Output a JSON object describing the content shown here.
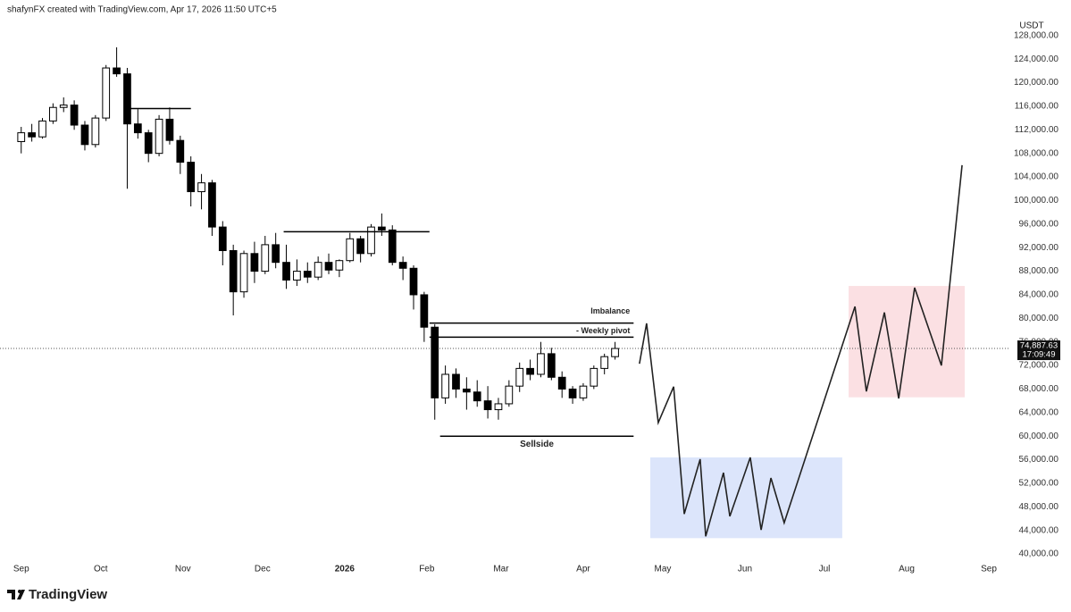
{
  "header": {
    "credit": "shafynFX created with TradingView.com, Apr 17, 2026 11:50 UTC+5"
  },
  "chart_data": {
    "type": "candlestick",
    "currency": "USDT",
    "up_color": "#ffffff",
    "down_color": "#000000",
    "xlim": [
      -8,
      366
    ],
    "ylim": [
      38500,
      131000
    ],
    "x": [
      0,
      4,
      8,
      12,
      16,
      20,
      24,
      28,
      32,
      36,
      40,
      44,
      48,
      52,
      56,
      60,
      64,
      68,
      72,
      76,
      80,
      84,
      88,
      92,
      96,
      100,
      104,
      108,
      112,
      116,
      120,
      124,
      128,
      132,
      136,
      140,
      144,
      148,
      152,
      156,
      160,
      164,
      168,
      172,
      176,
      180,
      184,
      188,
      192,
      196,
      200,
      204,
      208,
      212,
      216,
      220,
      224
    ],
    "ohlc": [
      [
        110000,
        112500,
        108000,
        111500
      ],
      [
        111500,
        113000,
        110000,
        110800
      ],
      [
        110800,
        114000,
        110500,
        113500
      ],
      [
        113500,
        116500,
        113000,
        115800
      ],
      [
        115800,
        117500,
        115000,
        116200
      ],
      [
        116200,
        117000,
        112000,
        112800
      ],
      [
        112800,
        113500,
        108500,
        109500
      ],
      [
        109500,
        114500,
        109000,
        114000
      ],
      [
        114000,
        123000,
        113500,
        122500
      ],
      [
        122500,
        126000,
        121000,
        121500
      ],
      [
        121500,
        122500,
        102000,
        113000
      ],
      [
        113000,
        115500,
        110500,
        111500
      ],
      [
        111500,
        112000,
        106500,
        108000
      ],
      [
        108000,
        114500,
        107500,
        113800
      ],
      [
        113800,
        115800,
        109500,
        110200
      ],
      [
        110200,
        111000,
        104500,
        106500
      ],
      [
        106500,
        107500,
        99000,
        101500
      ],
      [
        101500,
        104500,
        98500,
        103000
      ],
      [
        103000,
        103500,
        94000,
        95500
      ],
      [
        95500,
        96500,
        89000,
        91500
      ],
      [
        91500,
        92500,
        80500,
        84500
      ],
      [
        84500,
        91500,
        83500,
        91000
      ],
      [
        91000,
        93000,
        86000,
        88000
      ],
      [
        88000,
        94000,
        87500,
        92500
      ],
      [
        92500,
        94500,
        88500,
        89500
      ],
      [
        89500,
        92500,
        85000,
        86500
      ],
      [
        86500,
        90000,
        85500,
        88000
      ],
      [
        88000,
        89500,
        86000,
        87000
      ],
      [
        87000,
        90500,
        86500,
        89500
      ],
      [
        89500,
        91000,
        87500,
        88200
      ],
      [
        88200,
        90000,
        87000,
        89800
      ],
      [
        89800,
        94500,
        89500,
        93500
      ],
      [
        93500,
        94000,
        89500,
        91000
      ],
      [
        91000,
        96000,
        90500,
        95500
      ],
      [
        95500,
        97800,
        94000,
        95000
      ],
      [
        95000,
        95800,
        89000,
        89500
      ],
      [
        89500,
        90500,
        86500,
        88500
      ],
      [
        88500,
        89000,
        81500,
        84000
      ],
      [
        84000,
        84500,
        76000,
        78500
      ],
      [
        78500,
        79000,
        62800,
        66500
      ],
      [
        66500,
        72000,
        65500,
        70500
      ],
      [
        70500,
        71500,
        66500,
        68000
      ],
      [
        68000,
        70000,
        64500,
        67500
      ],
      [
        67500,
        69500,
        65000,
        66000
      ],
      [
        66000,
        68500,
        63000,
        64500
      ],
      [
        64500,
        66500,
        62800,
        65500
      ],
      [
        65500,
        69500,
        65000,
        68500
      ],
      [
        68500,
        72500,
        67500,
        71500
      ],
      [
        71500,
        73000,
        69500,
        70500
      ],
      [
        70500,
        76000,
        70000,
        74000
      ],
      [
        74000,
        75000,
        69500,
        70000
      ],
      [
        70000,
        71000,
        66500,
        68000
      ],
      [
        68000,
        68500,
        65500,
        66500
      ],
      [
        66500,
        69000,
        66000,
        68500
      ],
      [
        68500,
        72000,
        68000,
        71500
      ],
      [
        71500,
        74000,
        70500,
        73500
      ],
      [
        73500,
        76000,
        73000,
        74887.63
      ]
    ],
    "last_label": "74,887.63",
    "countdown": "17:09:49",
    "xticks": [
      {
        "value": 0,
        "label": "Sep"
      },
      {
        "value": 30,
        "label": "Oct"
      },
      {
        "value": 61,
        "label": "Nov"
      },
      {
        "value": 91,
        "label": "Dec"
      },
      {
        "value": 122,
        "label": "2026",
        "bold": true
      },
      {
        "value": 153,
        "label": "Feb"
      },
      {
        "value": 181,
        "label": "Mar"
      },
      {
        "value": 212,
        "label": "Apr"
      },
      {
        "value": 242,
        "label": "May"
      },
      {
        "value": 273,
        "label": "Jun"
      },
      {
        "value": 303,
        "label": "Jul"
      },
      {
        "value": 334,
        "label": "Aug"
      },
      {
        "value": 365,
        "label": "Sep"
      }
    ],
    "yticks": [
      {
        "value": 40000,
        "label": "40,000.00"
      },
      {
        "value": 44000,
        "label": "44,000.00"
      },
      {
        "value": 48000,
        "label": "48,000.00"
      },
      {
        "value": 52000,
        "label": "52,000.00"
      },
      {
        "value": 56000,
        "label": "56,000.00"
      },
      {
        "value": 60000,
        "label": "60,000.00"
      },
      {
        "value": 64000,
        "label": "64,000.00"
      },
      {
        "value": 68000,
        "label": "68,000.00"
      },
      {
        "value": 72000,
        "label": "72,000.00"
      },
      {
        "value": 76000,
        "label": "76,000.00"
      },
      {
        "value": 80000,
        "label": "80,000.00"
      },
      {
        "value": 84000,
        "label": "84,000.00"
      },
      {
        "value": 88000,
        "label": "88,000.00"
      },
      {
        "value": 92000,
        "label": "92,000.00"
      },
      {
        "value": 96000,
        "label": "96,000.00"
      },
      {
        "value": 100000,
        "label": "100,000.00"
      },
      {
        "value": 104000,
        "label": "104,000.00"
      },
      {
        "value": 108000,
        "label": "108,000.00"
      },
      {
        "value": 112000,
        "label": "112,000.00"
      },
      {
        "value": 116000,
        "label": "116,000.00"
      },
      {
        "value": 120000,
        "label": "120,000.00"
      },
      {
        "value": 124000,
        "label": "124,000.00"
      },
      {
        "value": 128000,
        "label": "128,000.00"
      }
    ],
    "levels": [
      {
        "value": 115600,
        "x": [
          41,
          64
        ]
      },
      {
        "value": 94700,
        "x": [
          99,
          154
        ]
      },
      {
        "label": "Imbalance",
        "value": 79200,
        "x": [
          154,
          231
        ]
      },
      {
        "label": "- Weekly pivot",
        "value": 76800,
        "x": [
          154,
          231
        ]
      },
      {
        "label": "Sellside",
        "value": 60000,
        "x": [
          158,
          231
        ]
      }
    ],
    "zones": [
      {
        "x": [
          237.3,
          309.7
        ],
        "values": [
          42700,
          56400
        ],
        "color": "#dce5fb"
      },
      {
        "x": [
          312.1,
          355.9
        ],
        "values": [
          66600,
          85500
        ],
        "color": "#fbe0e3"
      }
    ],
    "projection": {
      "color": "#222222",
      "x": [
        233.2,
        235.9,
        240.3,
        246.1,
        250.1,
        256.1,
        258.2,
        264.9,
        267.3,
        275.0,
        279.1,
        282.8,
        287.8,
        314.5,
        318.8,
        325.6,
        331.0,
        337.0,
        347.1,
        354.9
      ],
      "values": [
        72300,
        79150,
        62300,
        68400,
        46800,
        56100,
        43000,
        53800,
        46400,
        56400,
        44100,
        52900,
        45300,
        82000,
        67600,
        81000,
        66400,
        85200,
        72000,
        106000
      ]
    }
  },
  "footer": {
    "brand": "TradingView"
  }
}
